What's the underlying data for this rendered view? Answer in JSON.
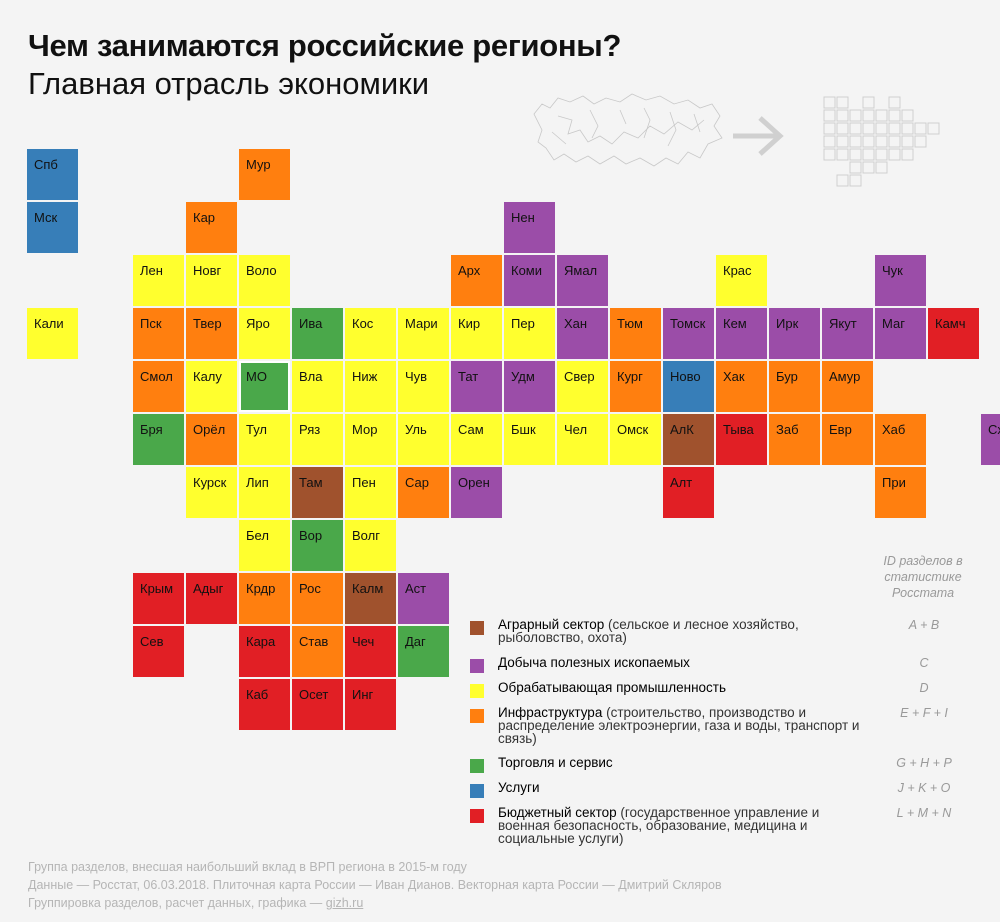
{
  "header": {
    "title": "Чем занимаются российские регионы?",
    "subtitle": "Главная отрасль экономики"
  },
  "colors": {
    "A": "#a0522d",
    "C": "#9b4da8",
    "D": "#ffff2e",
    "I": "#ff7f0f",
    "G": "#4aa84a",
    "J": "#377eb8",
    "L": "#e11f25"
  },
  "selected_region": "МО",
  "regions": [
    {
      "n": "Спб",
      "c": 0,
      "r": 0,
      "s": "J"
    },
    {
      "n": "Мск",
      "c": 0,
      "r": 1,
      "s": "J"
    },
    {
      "n": "Кали",
      "c": 0,
      "r": 3,
      "s": "D"
    },
    {
      "n": "Мур",
      "c": 4,
      "r": 0,
      "s": "I"
    },
    {
      "n": "Кар",
      "c": 3,
      "r": 1,
      "s": "I"
    },
    {
      "n": "Нен",
      "c": 9,
      "r": 1,
      "s": "C"
    },
    {
      "n": "Лен",
      "c": 2,
      "r": 2,
      "s": "D"
    },
    {
      "n": "Новг",
      "c": 3,
      "r": 2,
      "s": "D"
    },
    {
      "n": "Воло",
      "c": 4,
      "r": 2,
      "s": "D"
    },
    {
      "n": "Арх",
      "c": 8,
      "r": 2,
      "s": "I"
    },
    {
      "n": "Коми",
      "c": 9,
      "r": 2,
      "s": "C"
    },
    {
      "n": "Ямал",
      "c": 10,
      "r": 2,
      "s": "C"
    },
    {
      "n": "Крас",
      "c": 13,
      "r": 2,
      "s": "D"
    },
    {
      "n": "Чук",
      "c": 16,
      "r": 2,
      "s": "C"
    },
    {
      "n": "Пск",
      "c": 2,
      "r": 3,
      "s": "I"
    },
    {
      "n": "Твер",
      "c": 3,
      "r": 3,
      "s": "I"
    },
    {
      "n": "Яро",
      "c": 4,
      "r": 3,
      "s": "D"
    },
    {
      "n": "Ива",
      "c": 5,
      "r": 3,
      "s": "G"
    },
    {
      "n": "Кос",
      "c": 6,
      "r": 3,
      "s": "D"
    },
    {
      "n": "Мари",
      "c": 7,
      "r": 3,
      "s": "D"
    },
    {
      "n": "Кир",
      "c": 8,
      "r": 3,
      "s": "D"
    },
    {
      "n": "Пер",
      "c": 9,
      "r": 3,
      "s": "D"
    },
    {
      "n": "Хан",
      "c": 10,
      "r": 3,
      "s": "C"
    },
    {
      "n": "Тюм",
      "c": 11,
      "r": 3,
      "s": "I"
    },
    {
      "n": "Томск",
      "c": 12,
      "r": 3,
      "s": "C"
    },
    {
      "n": "Кем",
      "c": 13,
      "r": 3,
      "s": "C"
    },
    {
      "n": "Ирк",
      "c": 14,
      "r": 3,
      "s": "C"
    },
    {
      "n": "Якут",
      "c": 15,
      "r": 3,
      "s": "C"
    },
    {
      "n": "Маг",
      "c": 16,
      "r": 3,
      "s": "C"
    },
    {
      "n": "Камч",
      "c": 17,
      "r": 3,
      "s": "L"
    },
    {
      "n": "Смол",
      "c": 2,
      "r": 4,
      "s": "I"
    },
    {
      "n": "Калу",
      "c": 3,
      "r": 4,
      "s": "D"
    },
    {
      "n": "МО",
      "c": 4,
      "r": 4,
      "s": "G"
    },
    {
      "n": "Вла",
      "c": 5,
      "r": 4,
      "s": "D"
    },
    {
      "n": "Ниж",
      "c": 6,
      "r": 4,
      "s": "D"
    },
    {
      "n": "Чув",
      "c": 7,
      "r": 4,
      "s": "D"
    },
    {
      "n": "Тат",
      "c": 8,
      "r": 4,
      "s": "C"
    },
    {
      "n": "Удм",
      "c": 9,
      "r": 4,
      "s": "C"
    },
    {
      "n": "Свер",
      "c": 10,
      "r": 4,
      "s": "D"
    },
    {
      "n": "Кург",
      "c": 11,
      "r": 4,
      "s": "I"
    },
    {
      "n": "Ново",
      "c": 12,
      "r": 4,
      "s": "J"
    },
    {
      "n": "Хак",
      "c": 13,
      "r": 4,
      "s": "I"
    },
    {
      "n": "Бур",
      "c": 14,
      "r": 4,
      "s": "I"
    },
    {
      "n": "Амур",
      "c": 15,
      "r": 4,
      "s": "I"
    },
    {
      "n": "Бря",
      "c": 2,
      "r": 5,
      "s": "G"
    },
    {
      "n": "Орёл",
      "c": 3,
      "r": 5,
      "s": "I"
    },
    {
      "n": "Тул",
      "c": 4,
      "r": 5,
      "s": "D"
    },
    {
      "n": "Ряз",
      "c": 5,
      "r": 5,
      "s": "D"
    },
    {
      "n": "Мор",
      "c": 6,
      "r": 5,
      "s": "D"
    },
    {
      "n": "Уль",
      "c": 7,
      "r": 5,
      "s": "D"
    },
    {
      "n": "Сам",
      "c": 8,
      "r": 5,
      "s": "D"
    },
    {
      "n": "Бшк",
      "c": 9,
      "r": 5,
      "s": "D"
    },
    {
      "n": "Чел",
      "c": 10,
      "r": 5,
      "s": "D"
    },
    {
      "n": "Омск",
      "c": 11,
      "r": 5,
      "s": "D"
    },
    {
      "n": "АлК",
      "c": 12,
      "r": 5,
      "s": "A"
    },
    {
      "n": "Тыва",
      "c": 13,
      "r": 5,
      "s": "L"
    },
    {
      "n": "Заб",
      "c": 14,
      "r": 5,
      "s": "I"
    },
    {
      "n": "Евр",
      "c": 15,
      "r": 5,
      "s": "I"
    },
    {
      "n": "Хаб",
      "c": 16,
      "r": 5,
      "s": "I"
    },
    {
      "n": "Схлн",
      "c": 18,
      "r": 5,
      "s": "C"
    },
    {
      "n": "Курск",
      "c": 3,
      "r": 6,
      "s": "D"
    },
    {
      "n": "Лип",
      "c": 4,
      "r": 6,
      "s": "D"
    },
    {
      "n": "Там",
      "c": 5,
      "r": 6,
      "s": "A"
    },
    {
      "n": "Пен",
      "c": 6,
      "r": 6,
      "s": "D"
    },
    {
      "n": "Сар",
      "c": 7,
      "r": 6,
      "s": "I"
    },
    {
      "n": "Орен",
      "c": 8,
      "r": 6,
      "s": "C"
    },
    {
      "n": "Алт",
      "c": 12,
      "r": 6,
      "s": "L"
    },
    {
      "n": "При",
      "c": 16,
      "r": 6,
      "s": "I"
    },
    {
      "n": "Бел",
      "c": 4,
      "r": 7,
      "s": "D"
    },
    {
      "n": "Вор",
      "c": 5,
      "r": 7,
      "s": "G"
    },
    {
      "n": "Волг",
      "c": 6,
      "r": 7,
      "s": "D"
    },
    {
      "n": "Крым",
      "c": 2,
      "r": 8,
      "s": "L"
    },
    {
      "n": "Адыг",
      "c": 3,
      "r": 8,
      "s": "L"
    },
    {
      "n": "Крдр",
      "c": 4,
      "r": 8,
      "s": "I"
    },
    {
      "n": "Рос",
      "c": 5,
      "r": 8,
      "s": "I"
    },
    {
      "n": "Калм",
      "c": 6,
      "r": 8,
      "s": "A"
    },
    {
      "n": "Аст",
      "c": 7,
      "r": 8,
      "s": "C"
    },
    {
      "n": "Сев",
      "c": 2,
      "r": 9,
      "s": "L"
    },
    {
      "n": "Кара",
      "c": 4,
      "r": 9,
      "s": "L"
    },
    {
      "n": "Став",
      "c": 5,
      "r": 9,
      "s": "I"
    },
    {
      "n": "Чеч",
      "c": 6,
      "r": 9,
      "s": "L"
    },
    {
      "n": "Даг",
      "c": 7,
      "r": 9,
      "s": "G"
    },
    {
      "n": "Каб",
      "c": 4,
      "r": 10,
      "s": "L"
    },
    {
      "n": "Осет",
      "c": 5,
      "r": 10,
      "s": "L"
    },
    {
      "n": "Инг",
      "c": 6,
      "r": 10,
      "s": "L"
    }
  ],
  "legend": {
    "id_header": "ID разделов в статистике Росстата",
    "items": [
      {
        "sector": "A",
        "label": "Аграрный сектор",
        "desc": "(сельское и лесное хозяйство, рыболовство, охота)",
        "ids": "A + B"
      },
      {
        "sector": "C",
        "label": "Добыча полезных ископаемых",
        "desc": "",
        "ids": "C"
      },
      {
        "sector": "D",
        "label": "Обрабатывающая промышленность",
        "desc": "",
        "ids": "D"
      },
      {
        "sector": "I",
        "label": "Инфраструктура",
        "desc": "(строительство, производство и распределение электроэнергии, газа и воды, транспорт и связь)",
        "ids": "E + F + I"
      },
      {
        "sector": "G",
        "label": "Торговля и сервис",
        "desc": "",
        "ids": "G + H + P"
      },
      {
        "sector": "J",
        "label": "Услуги",
        "desc": "",
        "ids": "J + K + O"
      },
      {
        "sector": "L",
        "label": "Бюджетный сектор",
        "desc": "(государственное управление и военная безопасность, образование, медицина и социальные услуги)",
        "ids": "L + M + N"
      }
    ]
  },
  "footer": {
    "line1": "Группа разделов, внесшая наибольший вклад в ВРП региона в 2015-м году",
    "line2": "Данные — Росстат, 06.03.2018. Плиточная карта России — Иван Дианов. Векторная карта России — Дмитрий Скляров",
    "line3_prefix": "Группировка разделов, расчет данных, графика — ",
    "link": "gizh.ru"
  }
}
